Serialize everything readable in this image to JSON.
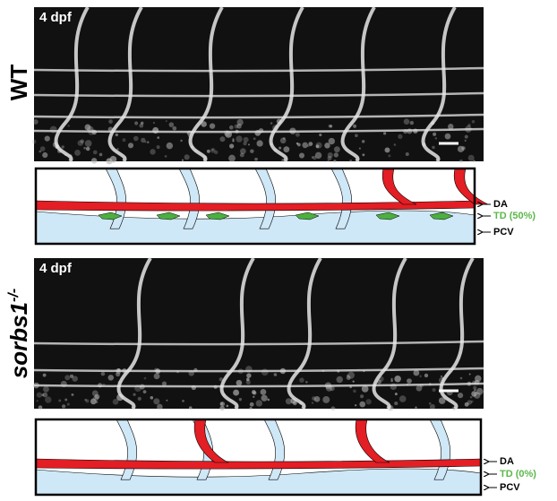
{
  "panels": [
    {
      "label": "WT",
      "image_label": "4 dpf",
      "annotations": [
        {
          "text": "DA"
        },
        {
          "text": "TD (50%)"
        },
        {
          "text": "PCV"
        }
      ]
    },
    {
      "label": "sorbs1",
      "label_sup": "-/-",
      "image_label": "4 dpf",
      "annotations": [
        {
          "text": "DA"
        },
        {
          "text": "TD (0%)"
        },
        {
          "text": "PCV"
        }
      ]
    }
  ]
}
